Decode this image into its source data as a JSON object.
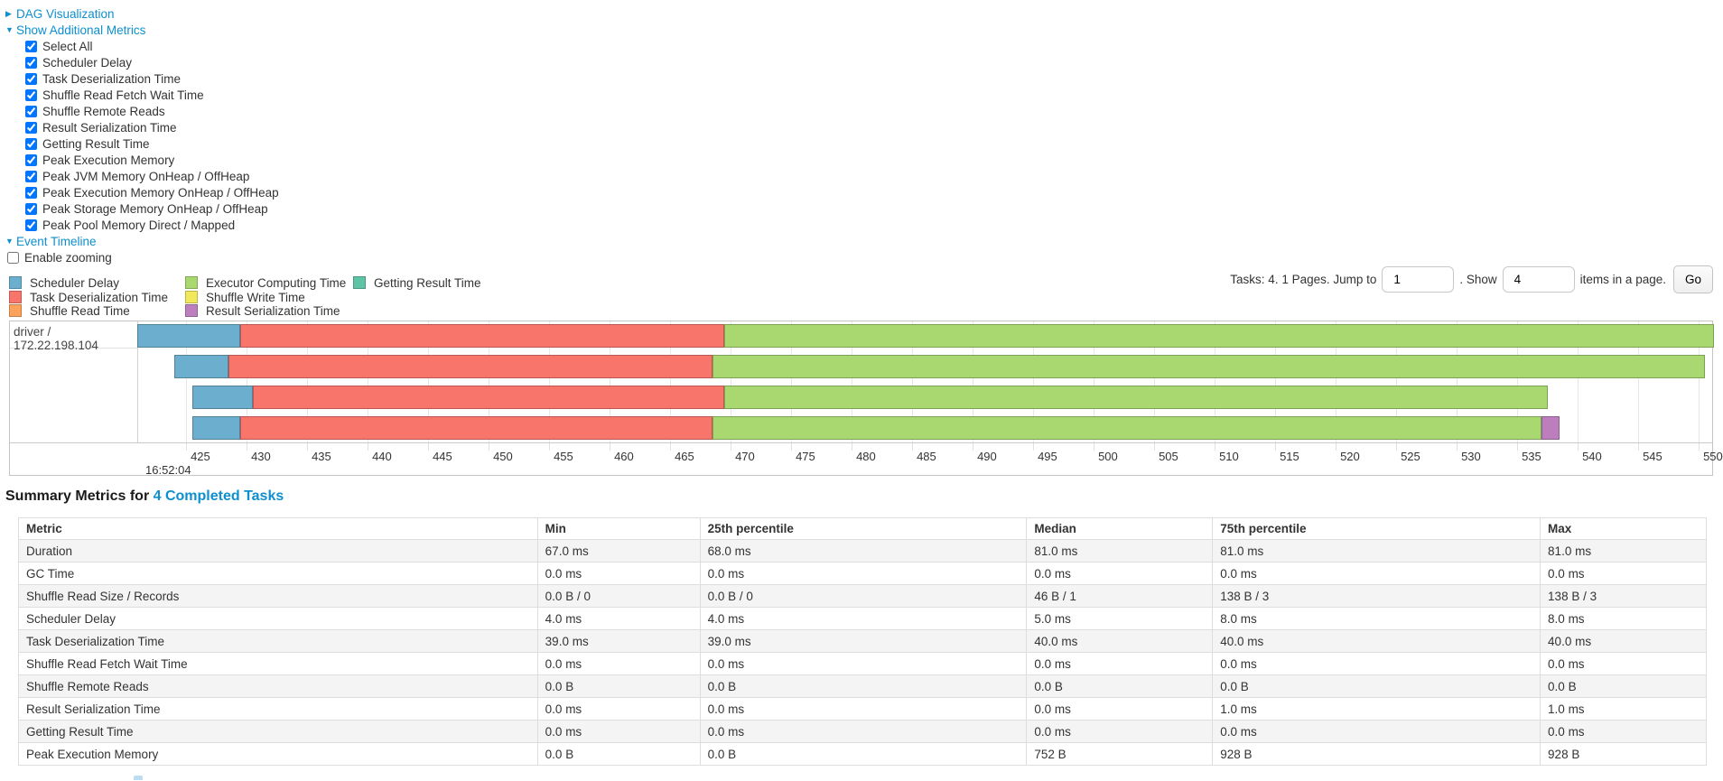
{
  "colors": {
    "link": "#0d8fd0",
    "scheduler_delay": "#6CAECE",
    "task_deserialization": "#F8756C",
    "shuffle_read": "#FBA35C",
    "executor_computing": "#A9D870",
    "shuffle_write": "#F2E85C",
    "getting_result": "#5FC3A5",
    "result_serialization": "#BD7EBE"
  },
  "controls": {
    "dag_toggle": "DAG Visualization",
    "metrics_toggle": "Show Additional Metrics",
    "metric_checkboxes": [
      "Select All",
      "Scheduler Delay",
      "Task Deserialization Time",
      "Shuffle Read Fetch Wait Time",
      "Shuffle Remote Reads",
      "Result Serialization Time",
      "Getting Result Time",
      "Peak Execution Memory",
      "Peak JVM Memory OnHeap / OffHeap",
      "Peak Execution Memory OnHeap / OffHeap",
      "Peak Storage Memory OnHeap / OffHeap",
      "Peak Pool Memory Direct / Mapped"
    ],
    "timeline_toggle": "Event Timeline",
    "enable_zooming_label": "Enable zooming",
    "enable_zooming_checked": false
  },
  "legend": [
    {
      "label": "Scheduler Delay",
      "color_key": "scheduler_delay",
      "col": 0,
      "row": 0
    },
    {
      "label": "Task Deserialization Time",
      "color_key": "task_deserialization",
      "col": 0,
      "row": 1
    },
    {
      "label": "Shuffle Read Time",
      "color_key": "shuffle_read",
      "col": 0,
      "row": 2
    },
    {
      "label": "Executor Computing Time",
      "color_key": "executor_computing",
      "col": 1,
      "row": 0
    },
    {
      "label": "Shuffle Write Time",
      "color_key": "shuffle_write",
      "col": 1,
      "row": 1
    },
    {
      "label": "Result Serialization Time",
      "color_key": "result_serialization",
      "col": 1,
      "row": 2
    },
    {
      "label": "Getting Result Time",
      "color_key": "getting_result",
      "col": 2,
      "row": 0
    }
  ],
  "pagination": {
    "summary_text": "Tasks: 4. 1 Pages. Jump to",
    "jump_value": "1",
    "mid_text": ". Show",
    "show_value": "4",
    "suffix_text": "items in a page.",
    "go_label": "Go"
  },
  "chart_data": {
    "type": "gantt-timeline",
    "title": "Event Timeline",
    "group_label": "driver / 172.22.198.104",
    "x_axis": {
      "unit": "ms within second",
      "tick_start": 425,
      "tick_end": 550,
      "tick_step": 5,
      "first_tick_timestamp": "16:52:04",
      "visible_range": [
        421.0,
        551.3
      ],
      "grid": true
    },
    "tasks": [
      {
        "segments": [
          {
            "name": "scheduler_delay",
            "start": 421.0,
            "end": 429.5
          },
          {
            "name": "task_deserialization",
            "start": 429.5,
            "end": 469.5
          },
          {
            "name": "executor_computing",
            "start": 469.5,
            "end": 551.3
          }
        ]
      },
      {
        "segments": [
          {
            "name": "scheduler_delay",
            "start": 424.0,
            "end": 428.5
          },
          {
            "name": "task_deserialization",
            "start": 428.5,
            "end": 468.5
          },
          {
            "name": "executor_computing",
            "start": 468.5,
            "end": 550.5
          }
        ]
      },
      {
        "segments": [
          {
            "name": "scheduler_delay",
            "start": 425.5,
            "end": 430.5
          },
          {
            "name": "task_deserialization",
            "start": 430.5,
            "end": 469.5
          },
          {
            "name": "executor_computing",
            "start": 469.5,
            "end": 537.5
          }
        ]
      },
      {
        "segments": [
          {
            "name": "scheduler_delay",
            "start": 425.5,
            "end": 429.5
          },
          {
            "name": "task_deserialization",
            "start": 429.5,
            "end": 468.5
          },
          {
            "name": "executor_computing",
            "start": 468.5,
            "end": 537.0
          },
          {
            "name": "result_serialization",
            "start": 537.0,
            "end": 538.5
          }
        ]
      }
    ]
  },
  "summary": {
    "heading_prefix": "Summary Metrics for ",
    "heading_link": "4 Completed Tasks"
  },
  "table": {
    "headers": [
      "Metric",
      "Min",
      "25th percentile",
      "Median",
      "75th percentile",
      "Max"
    ],
    "rows": [
      [
        "Duration",
        "67.0 ms",
        "68.0 ms",
        "81.0 ms",
        "81.0 ms",
        "81.0 ms"
      ],
      [
        "GC Time",
        "0.0 ms",
        "0.0 ms",
        "0.0 ms",
        "0.0 ms",
        "0.0 ms"
      ],
      [
        "Shuffle Read Size / Records",
        "0.0 B / 0",
        "0.0 B / 0",
        "46 B / 1",
        "138 B / 3",
        "138 B / 3"
      ],
      [
        "Scheduler Delay",
        "4.0 ms",
        "4.0 ms",
        "5.0 ms",
        "8.0 ms",
        "8.0 ms"
      ],
      [
        "Task Deserialization Time",
        "39.0 ms",
        "39.0 ms",
        "40.0 ms",
        "40.0 ms",
        "40.0 ms"
      ],
      [
        "Shuffle Read Fetch Wait Time",
        "0.0 ms",
        "0.0 ms",
        "0.0 ms",
        "0.0 ms",
        "0.0 ms"
      ],
      [
        "Shuffle Remote Reads",
        "0.0 B",
        "0.0 B",
        "0.0 B",
        "0.0 B",
        "0.0 B"
      ],
      [
        "Result Serialization Time",
        "0.0 ms",
        "0.0 ms",
        "0.0 ms",
        "1.0 ms",
        "1.0 ms"
      ],
      [
        "Getting Result Time",
        "0.0 ms",
        "0.0 ms",
        "0.0 ms",
        "0.0 ms",
        "0.0 ms"
      ],
      [
        "Peak Execution Memory",
        "0.0 B",
        "0.0 B",
        "752 B",
        "928 B",
        "928 B"
      ]
    ]
  }
}
